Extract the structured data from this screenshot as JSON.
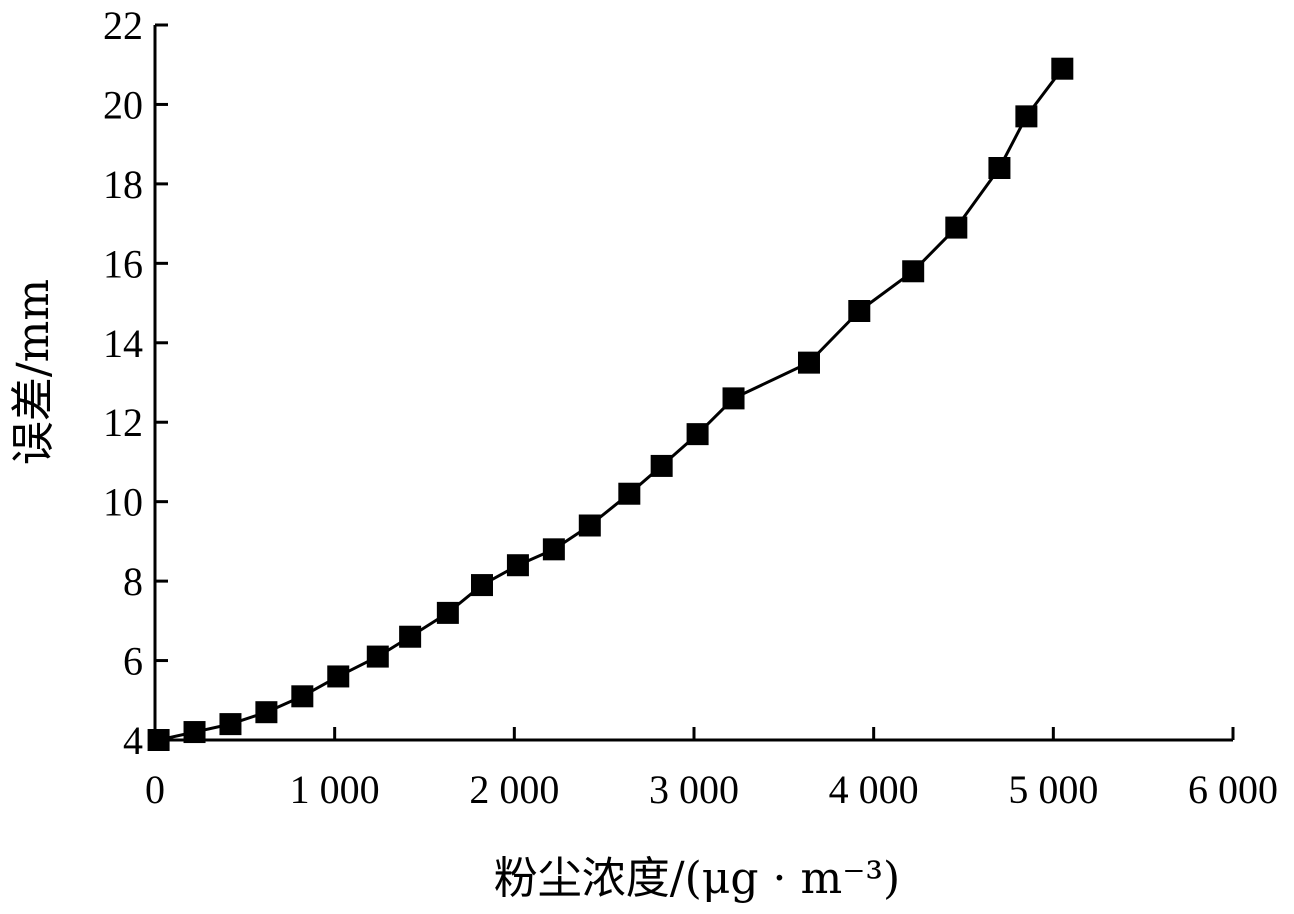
{
  "chart_data": {
    "type": "line",
    "title": "",
    "xlabel": "粉尘浓度/(μg · m⁻³)",
    "ylabel": "误差/mm",
    "xlim": [
      0,
      6000
    ],
    "ylim": [
      4,
      22
    ],
    "x_ticks": [
      0,
      1000,
      2000,
      3000,
      4000,
      5000,
      6000
    ],
    "x_tick_labels": [
      "0",
      "1 000",
      "2 000",
      "3 000",
      "4 000",
      "5 000",
      "6 000"
    ],
    "y_ticks": [
      4,
      6,
      8,
      10,
      12,
      14,
      16,
      18,
      20,
      22
    ],
    "y_tick_labels": [
      "4",
      "6",
      "8",
      "10",
      "12",
      "14",
      "16",
      "18",
      "20",
      "22"
    ],
    "grid": false,
    "legend": "none",
    "series": [
      {
        "marker": "square",
        "color": "#000000",
        "points": [
          [
            20,
            4.0
          ],
          [
            220,
            4.2
          ],
          [
            420,
            4.4
          ],
          [
            620,
            4.7
          ],
          [
            820,
            5.1
          ],
          [
            1020,
            5.6
          ],
          [
            1240,
            6.1
          ],
          [
            1420,
            6.6
          ],
          [
            1630,
            7.2
          ],
          [
            1820,
            7.9
          ],
          [
            2020,
            8.4
          ],
          [
            2220,
            8.8
          ],
          [
            2420,
            9.4
          ],
          [
            2640,
            10.2
          ],
          [
            2820,
            10.9
          ],
          [
            3020,
            11.7
          ],
          [
            3220,
            12.6
          ],
          [
            3640,
            13.5
          ],
          [
            3920,
            14.8
          ],
          [
            4220,
            15.8
          ],
          [
            4460,
            16.9
          ],
          [
            4700,
            18.4
          ],
          [
            4850,
            19.7
          ],
          [
            5050,
            20.9
          ]
        ]
      }
    ]
  }
}
